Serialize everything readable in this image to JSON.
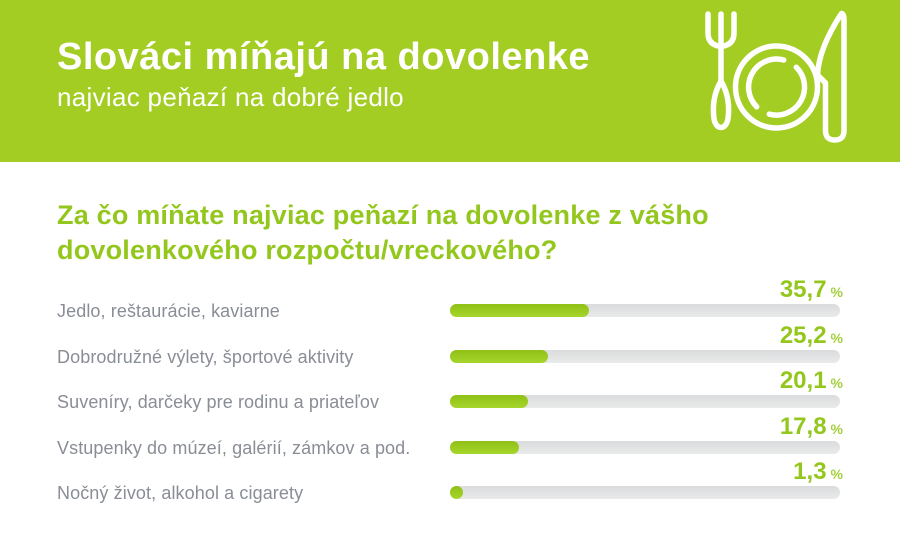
{
  "header": {
    "title": "Slováci míňajú na dovolenke",
    "subtitle": "najviac peňazí na dobré jedlo",
    "icon": "fork-plate-knife-icon"
  },
  "question": {
    "full_text": "Za čo míňate najviac peňazí na dovolenke z vášho dovolenkového rozpočtu/vreckového?",
    "line1": "Za čo míňate najviac peňazí na dovolenke z vášho",
    "line2": "dovolenkového rozpočtu/vreckového?"
  },
  "chart_data": {
    "type": "bar",
    "orientation": "horizontal",
    "title": "Za čo míňate najviac peňazí na dovolenke z vášho dovolenkového rozpočtu/vreckového?",
    "categories": [
      "Jedlo, reštaurácie, kaviarne",
      "Dobrodružné výlety, športové aktivity",
      "Suveníry, darčeky pre rodinu a priateľov",
      "Vstupenky do múzeí, galérií, zámkov a pod.",
      "Nočný život, alkohol a cigarety"
    ],
    "values": [
      35.7,
      25.2,
      20.1,
      17.8,
      1.3
    ],
    "value_labels": [
      "35,7",
      "25,2",
      "20,1",
      "17,8",
      "1,3"
    ],
    "unit": "%",
    "xlim": [
      0,
      100
    ],
    "grid": false,
    "legend": false,
    "value_label_position": "right-above-bar"
  },
  "colors": {
    "header_bg": "#a3cd23",
    "accent_green": "#94c71d",
    "bar_fill_top": "#8fc015",
    "bar_fill_bottom": "#a6d62c",
    "track_gray": "#e3e4e5",
    "label_gray": "#898d95",
    "header_text": "#ffffff"
  }
}
